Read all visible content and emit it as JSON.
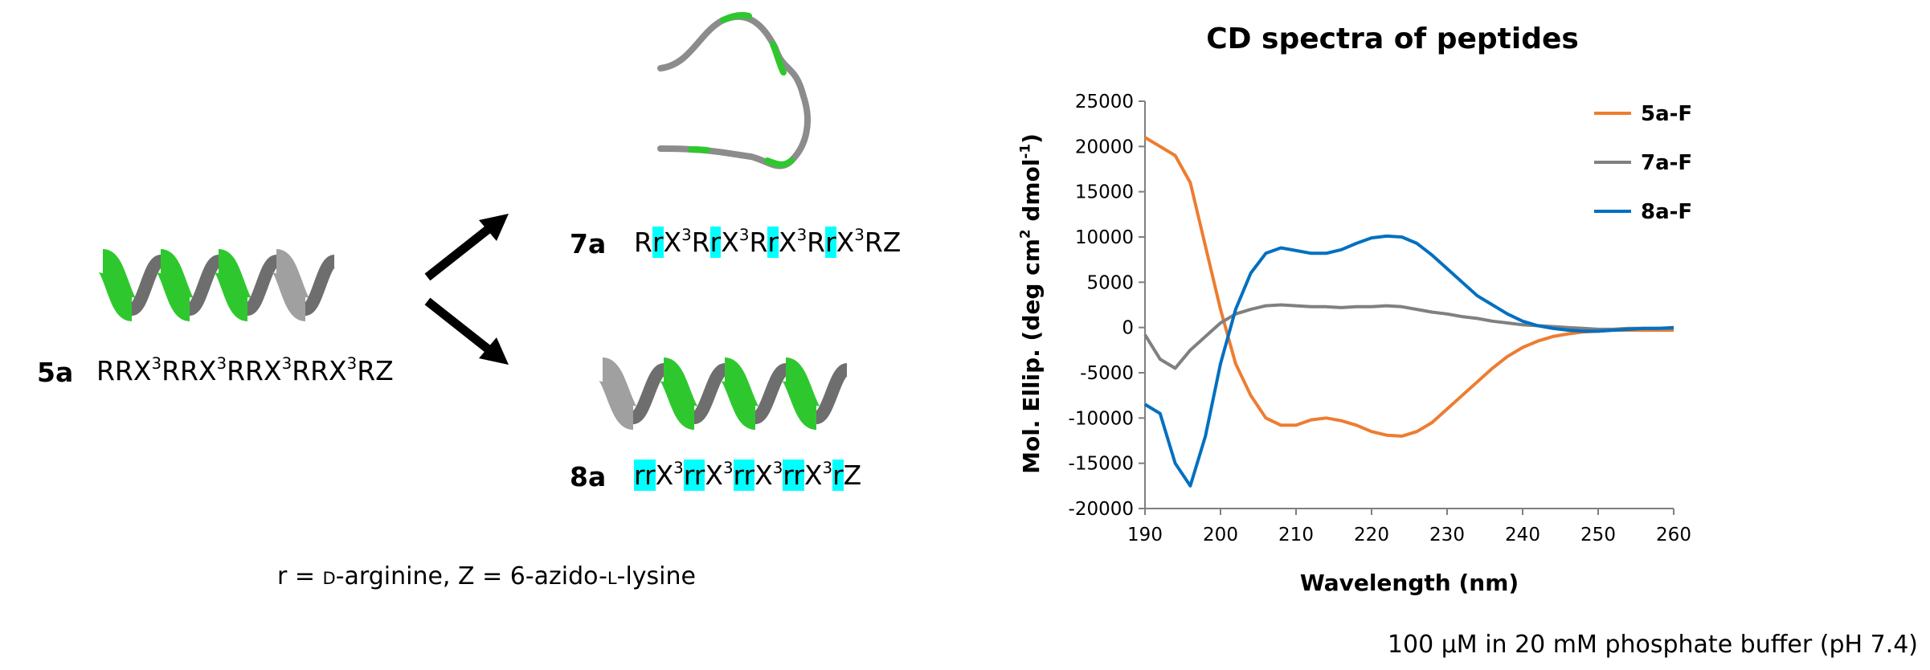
{
  "peptides": [
    {
      "label": "5a",
      "parts": [
        {
          "text": "RRX"
        },
        {
          "text": "3",
          "style": "sup"
        },
        {
          "text": "RRX"
        },
        {
          "text": "3",
          "style": "sup"
        },
        {
          "text": "RRX"
        },
        {
          "text": "3",
          "style": "sup"
        },
        {
          "text": "RRX"
        },
        {
          "text": "3",
          "style": "sup"
        },
        {
          "text": "RZ"
        }
      ]
    },
    {
      "label": "7a",
      "parts": [
        {
          "text": "R"
        },
        {
          "text": "r",
          "style": "hl"
        },
        {
          "text": "X"
        },
        {
          "text": "3",
          "style": "sup"
        },
        {
          "text": "R"
        },
        {
          "text": "r",
          "style": "hl"
        },
        {
          "text": "X"
        },
        {
          "text": "3",
          "style": "sup"
        },
        {
          "text": "R"
        },
        {
          "text": "r",
          "style": "hl"
        },
        {
          "text": "X"
        },
        {
          "text": "3",
          "style": "sup"
        },
        {
          "text": "R"
        },
        {
          "text": "r",
          "style": "hl"
        },
        {
          "text": "X"
        },
        {
          "text": "3",
          "style": "sup"
        },
        {
          "text": "RZ"
        }
      ]
    },
    {
      "label": "8a",
      "parts": [
        {
          "text": "rr",
          "style": "hl"
        },
        {
          "text": "X"
        },
        {
          "text": "3",
          "style": "sup"
        },
        {
          "text": "rr",
          "style": "hl"
        },
        {
          "text": "X"
        },
        {
          "text": "3",
          "style": "sup"
        },
        {
          "text": "rr",
          "style": "hl"
        },
        {
          "text": "X"
        },
        {
          "text": "3",
          "style": "sup"
        },
        {
          "text": "rr",
          "style": "hl"
        },
        {
          "text": "X"
        },
        {
          "text": "3",
          "style": "sup"
        },
        {
          "text": "r",
          "style": "hl"
        },
        {
          "text": "Z"
        }
      ]
    }
  ],
  "footnote": [
    {
      "text": "r = "
    },
    {
      "text": "D",
      "style": "smallcaps"
    },
    {
      "text": "-arginine, Z = 6-azido-"
    },
    {
      "text": "L",
      "style": "smallcaps"
    },
    {
      "text": "-lysine"
    }
  ],
  "chart_data": {
    "type": "line",
    "title": "CD spectra of peptides",
    "x_label": "Wavelength (nm)",
    "y_label": [
      {
        "text": "Mol. Ellip. (deg cm"
      },
      {
        "text": "2",
        "style": "sup"
      },
      {
        "text": " dmol"
      },
      {
        "text": "-1",
        "style": "sup"
      },
      {
        "text": ")"
      }
    ],
    "note": "100 µM in 20 mM phosphate buffer (pH 7.4)",
    "x": [
      190,
      192,
      194,
      196,
      198,
      200,
      202,
      204,
      206,
      208,
      210,
      212,
      214,
      216,
      218,
      220,
      222,
      224,
      226,
      228,
      230,
      232,
      234,
      236,
      238,
      240,
      242,
      244,
      246,
      248,
      250,
      252,
      254,
      256,
      258,
      260
    ],
    "series": [
      {
        "name": "5a-F",
        "color": "#ed7d31",
        "values": [
          21000,
          20000,
          19000,
          16000,
          9000,
          2000,
          -4000,
          -7500,
          -10000,
          -10800,
          -10800,
          -10200,
          -10000,
          -10300,
          -10800,
          -11500,
          -11900,
          -12000,
          -11500,
          -10500,
          -9000,
          -7500,
          -6000,
          -4500,
          -3200,
          -2200,
          -1500,
          -1000,
          -700,
          -500,
          -400,
          -300,
          -300,
          -300,
          -300,
          -300
        ]
      },
      {
        "name": "7a-F",
        "color": "#808080",
        "values": [
          -800,
          -3500,
          -4500,
          -2500,
          -1000,
          500,
          1500,
          2000,
          2400,
          2500,
          2400,
          2300,
          2300,
          2200,
          2300,
          2300,
          2400,
          2300,
          2000,
          1700,
          1500,
          1200,
          1000,
          700,
          500,
          300,
          200,
          100,
          0,
          -100,
          -200,
          -200,
          -100,
          -100,
          -100,
          -100
        ]
      },
      {
        "name": "8a-F",
        "color": "#0070c0",
        "values": [
          -8500,
          -9500,
          -15000,
          -17500,
          -12000,
          -4000,
          2000,
          6000,
          8200,
          8800,
          8500,
          8200,
          8200,
          8600,
          9300,
          9900,
          10100,
          10000,
          9300,
          8000,
          6500,
          5000,
          3500,
          2500,
          1500,
          700,
          200,
          -100,
          -300,
          -400,
          -400,
          -300,
          -200,
          -100,
          -100,
          0
        ]
      }
    ],
    "xlim": [
      190,
      260
    ],
    "xticks": [
      190,
      200,
      210,
      220,
      230,
      240,
      250,
      260
    ],
    "ylim": [
      -20000,
      25000
    ],
    "yticks": [
      -20000,
      -15000,
      -10000,
      -5000,
      0,
      5000,
      10000,
      15000,
      20000,
      25000
    ],
    "grid": false,
    "legend": "right"
  }
}
